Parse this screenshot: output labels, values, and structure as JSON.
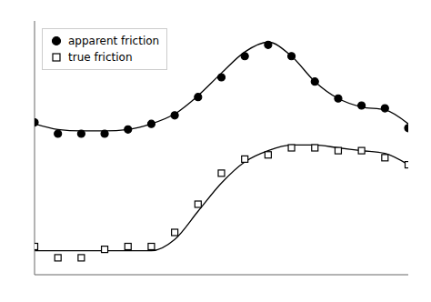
{
  "chart_data": {
    "type": "scatter",
    "x": [
      0,
      1,
      2,
      3,
      4,
      5,
      6,
      7,
      8,
      9,
      10,
      11,
      12,
      13,
      14,
      15,
      16
    ],
    "series": [
      {
        "name": "apparent friction",
        "type": "scatter",
        "marker": "circle",
        "color": "#000000",
        "values": [
          0.58,
          0.5,
          0.5,
          0.5,
          0.53,
          0.57,
          0.63,
          0.76,
          0.9,
          1.05,
          1.13,
          1.05,
          0.87,
          0.75,
          0.7,
          0.68,
          0.54
        ]
      },
      {
        "name": "true friction",
        "type": "scatter",
        "marker": "open_square",
        "color": "#000000",
        "values": [
          -0.3,
          -0.38,
          -0.38,
          -0.32,
          -0.3,
          -0.3,
          -0.2,
          0.0,
          0.22,
          0.32,
          0.35,
          0.4,
          0.4,
          0.38,
          0.38,
          0.33,
          0.28
        ]
      },
      {
        "type": "line",
        "color": "#000000",
        "values": [
          0.57,
          0.53,
          0.52,
          0.52,
          0.53,
          0.57,
          0.64,
          0.77,
          0.93,
          1.08,
          1.15,
          1.05,
          0.87,
          0.75,
          0.69,
          0.67,
          0.57
        ]
      },
      {
        "type": "line",
        "color": "#000000",
        "values": [
          -0.33,
          -0.33,
          -0.33,
          -0.33,
          -0.33,
          -0.33,
          -0.25,
          -0.05,
          0.15,
          0.3,
          0.38,
          0.42,
          0.42,
          0.4,
          0.38,
          0.36,
          0.28
        ]
      }
    ],
    "xlim": [
      0,
      16
    ],
    "ylim": [
      -0.5,
      1.3
    ],
    "xticks": [
      0,
      2,
      4,
      6,
      8,
      10,
      12,
      14,
      16
    ],
    "yticks": [
      -0.3,
      0,
      0.3,
      0.6,
      0.9,
      1.2
    ],
    "tick_labels": false,
    "grid": false,
    "legend": "upper left"
  }
}
